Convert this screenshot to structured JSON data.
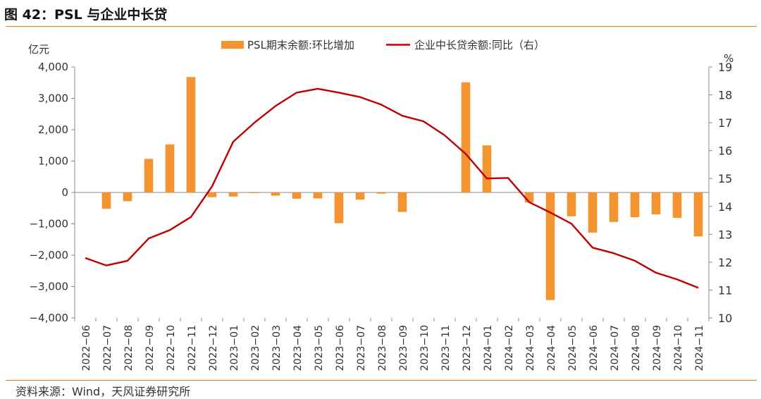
{
  "figure": {
    "title": "图 42：PSL 与企业中长贷",
    "source": "资料来源：Wind，天风证券研究所"
  },
  "colors": {
    "bar": "#f39431",
    "line": "#c00000",
    "accent_rule": "#e07a1f",
    "axis": "#888888",
    "text": "#333333"
  },
  "chart_data": {
    "type": "bar+line",
    "left_axis_unit": "亿元",
    "right_axis_unit": "%",
    "left_ylim": [
      -4000,
      4000
    ],
    "left_ticks": [
      4000,
      3000,
      2000,
      1000,
      0,
      -1000,
      -2000,
      -3000,
      -4000
    ],
    "left_tick_labels": [
      "4,000",
      "3,000",
      "2,000",
      "1,000",
      "0",
      "−1,000",
      "−2,000",
      "−3,000",
      "−4,000"
    ],
    "right_ylim": [
      10,
      19
    ],
    "right_ticks": [
      19,
      18,
      17,
      16,
      15,
      14,
      13,
      12,
      11,
      10
    ],
    "right_tick_labels": [
      "19",
      "18",
      "17",
      "16",
      "15",
      "14",
      "13",
      "12",
      "11",
      "10"
    ],
    "categories": [
      "2022−06",
      "2022−07",
      "2022−08",
      "2022−09",
      "2022−10",
      "2022−11",
      "2022−12",
      "2023−01",
      "2023−02",
      "2023−03",
      "2023−04",
      "2023−05",
      "2023−06",
      "2023−07",
      "2023−08",
      "2023−09",
      "2023−10",
      "2023−11",
      "2023−12",
      "2024−01",
      "2024−02",
      "2024−03",
      "2024−04",
      "2024−05",
      "2024−06",
      "2024−07",
      "2024−08",
      "2024−09",
      "2024−10",
      "2024−11"
    ],
    "series": [
      {
        "name": "PSL期末余额:环比增加",
        "type": "bar",
        "axis": "left",
        "values": [
          0,
          -520,
          -280,
          1070,
          1530,
          3680,
          -150,
          -130,
          -20,
          -100,
          -200,
          -190,
          -980,
          -230,
          -40,
          -620,
          0,
          0,
          3510,
          1500,
          0,
          -320,
          -3430,
          -760,
          -1280,
          -940,
          -790,
          -700,
          -810,
          -1400
        ]
      },
      {
        "name": "企业中长贷余额:同比（右）",
        "type": "line",
        "axis": "right",
        "values": [
          12.15,
          11.88,
          12.05,
          12.85,
          13.15,
          13.62,
          14.72,
          16.32,
          17.0,
          17.6,
          18.08,
          18.22,
          18.08,
          17.92,
          17.65,
          17.25,
          17.05,
          16.55,
          15.88,
          15.0,
          15.02,
          14.15,
          13.78,
          13.38,
          12.52,
          12.32,
          12.05,
          11.62,
          11.38,
          11.08
        ]
      }
    ],
    "legend_position": "top-center",
    "grid": false
  }
}
